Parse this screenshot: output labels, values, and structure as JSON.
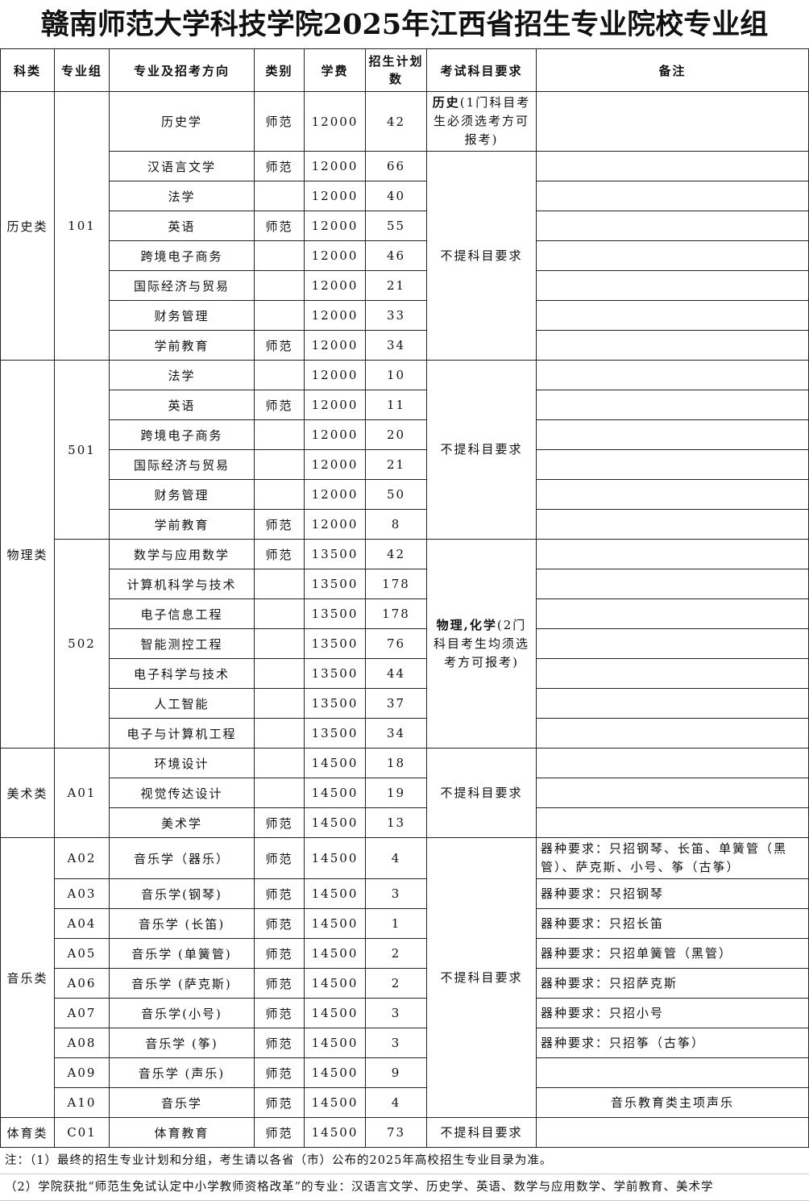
{
  "title": "赣南师范大学科技学院2025年江西省招生专业院校专业组",
  "headers": [
    "科类",
    "专业组",
    "专业及招考方向",
    "类别",
    "学费",
    "招生计划数",
    "考试科目要求",
    "备注"
  ],
  "categories": [
    {
      "name": "历史类",
      "groups": [
        {
          "code": "101",
          "majors": [
            {
              "name": "历史学",
              "type": "师范",
              "fee": "12000",
              "plan": "42",
              "requirement": {
                "bold": "历史",
                "text": "(1门科目考生必须选考方可报考)"
              }
            },
            {
              "name": "汉语言文学",
              "type": "师范",
              "fee": "12000",
              "plan": "66",
              "requirement": {
                "bold": "",
                "text": "不提科目要求"
              }
            },
            {
              "name": "法学",
              "type": "",
              "fee": "12000",
              "plan": "40"
            },
            {
              "name": "英语",
              "type": "师范",
              "fee": "12000",
              "plan": "55"
            },
            {
              "name": "跨境电子商务",
              "type": "",
              "fee": "12000",
              "plan": "46"
            },
            {
              "name": "国际经济与贸易",
              "type": "",
              "fee": "12000",
              "plan": "21"
            },
            {
              "name": "财务管理",
              "type": "",
              "fee": "12000",
              "plan": "33"
            },
            {
              "name": "学前教育",
              "type": "师范",
              "fee": "12000",
              "plan": "34"
            }
          ]
        }
      ]
    },
    {
      "name": "物理类",
      "groups": [
        {
          "code": "501",
          "majors": [
            {
              "name": "法学",
              "type": "",
              "fee": "12000",
              "plan": "10",
              "requirement": {
                "bold": "",
                "text": "不提科目要求"
              }
            },
            {
              "name": "英语",
              "type": "师范",
              "fee": "12000",
              "plan": "11"
            },
            {
              "name": "跨境电子商务",
              "type": "",
              "fee": "12000",
              "plan": "20"
            },
            {
              "name": "国际经济与贸易",
              "type": "",
              "fee": "12000",
              "plan": "21"
            },
            {
              "name": "财务管理",
              "type": "",
              "fee": "12000",
              "plan": "50"
            },
            {
              "name": "学前教育",
              "type": "师范",
              "fee": "12000",
              "plan": "8"
            }
          ]
        },
        {
          "code": "502",
          "majors": [
            {
              "name": "数学与应用数学",
              "type": "师范",
              "fee": "13500",
              "plan": "42",
              "requirement": {
                "bold": "物理,化学",
                "text": "(2门科目考生均须选考方可报考)"
              }
            },
            {
              "name": "计算机科学与技术",
              "type": "",
              "fee": "13500",
              "plan": "178"
            },
            {
              "name": "电子信息工程",
              "type": "",
              "fee": "13500",
              "plan": "178"
            },
            {
              "name": "智能测控工程",
              "type": "",
              "fee": "13500",
              "plan": "76"
            },
            {
              "name": "电子科学与技术",
              "type": "",
              "fee": "13500",
              "plan": "44"
            },
            {
              "name": "人工智能",
              "type": "",
              "fee": "13500",
              "plan": "37"
            },
            {
              "name": "电子与计算机工程",
              "type": "",
              "fee": "13500",
              "plan": "34"
            }
          ]
        }
      ]
    },
    {
      "name": "美术类",
      "groups": [
        {
          "code": "A01",
          "majors": [
            {
              "name": "环境设计",
              "type": "",
              "fee": "14500",
              "plan": "18",
              "requirement": {
                "bold": "",
                "text": "不提科目要求"
              }
            },
            {
              "name": "视觉传达设计",
              "type": "",
              "fee": "14500",
              "plan": "19"
            },
            {
              "name": "美术学",
              "type": "师范",
              "fee": "14500",
              "plan": "13"
            }
          ]
        }
      ]
    },
    {
      "name": "音乐类",
      "groups": [
        {
          "code": "A02",
          "majors": [
            {
              "name": "音乐学（器乐）",
              "type": "师范",
              "fee": "14500",
              "plan": "4",
              "note": "器种要求：只招钢琴、长笛、单簧管（黑管）、萨克斯、小号、筝（古筝）",
              "requirement": {
                "bold": "",
                "text": "不提科目要求"
              }
            }
          ]
        },
        {
          "code": "A03",
          "majors": [
            {
              "name": "音乐学(钢琴)",
              "type": "师范",
              "fee": "14500",
              "plan": "3",
              "note": "器种要求：只招钢琴"
            }
          ]
        },
        {
          "code": "A04",
          "majors": [
            {
              "name": "音乐学 (长笛)",
              "type": "师范",
              "fee": "14500",
              "plan": "1",
              "note": "器种要求：只招长笛"
            }
          ]
        },
        {
          "code": "A05",
          "majors": [
            {
              "name": "音乐学 (单簧管)",
              "type": "师范",
              "fee": "14500",
              "plan": "2",
              "note": "器种要求：只招单簧管（黑管）"
            }
          ]
        },
        {
          "code": "A06",
          "majors": [
            {
              "name": "音乐学 (萨克斯)",
              "type": "师范",
              "fee": "14500",
              "plan": "2",
              "note": "器种要求：只招萨克斯"
            }
          ]
        },
        {
          "code": "A07",
          "majors": [
            {
              "name": "音乐学(小号)",
              "type": "师范",
              "fee": "14500",
              "plan": "3",
              "note": "器种要求：只招小号"
            }
          ]
        },
        {
          "code": "A08",
          "majors": [
            {
              "name": "音乐学 (筝)",
              "type": "师范",
              "fee": "14500",
              "plan": "3",
              "note": "器种要求：只招筝（古筝）"
            }
          ]
        },
        {
          "code": "A09",
          "majors": [
            {
              "name": "音乐学 (声乐)",
              "type": "师范",
              "fee": "14500",
              "plan": "9"
            }
          ]
        },
        {
          "code": "A10",
          "majors": [
            {
              "name": "音乐学",
              "type": "师范",
              "fee": "14500",
              "plan": "4",
              "note": "音乐教育类主项声乐",
              "note_center": true
            }
          ]
        }
      ]
    },
    {
      "name": "体育类",
      "groups": [
        {
          "code": "C01",
          "majors": [
            {
              "name": "体育教育",
              "type": "师范",
              "fee": "14500",
              "plan": "73",
              "requirement": {
                "bold": "",
                "text": "不提科目要求"
              }
            }
          ]
        }
      ]
    }
  ],
  "footer": {
    "note1": "注：（1）最终的招生专业计划和分组，考生请以各省（市）公布的2025年高校招生专业目录为准。",
    "note2": "（2）学院获批“师范生免试认定中小学教师资格改革”的专业：汉语言文学、历史学、英语、数学与应用数学、学前教育、美术学"
  }
}
